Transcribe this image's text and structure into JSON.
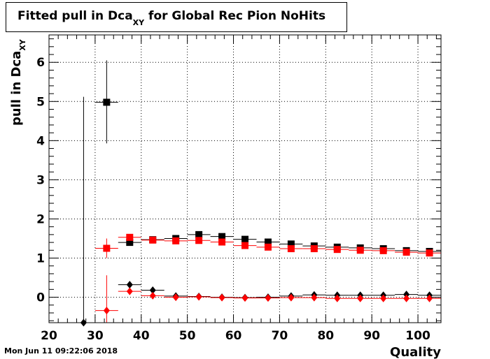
{
  "title": {
    "main": "Fitted pull in Dca",
    "sub": "XY",
    "rest": " for Global Rec Pion NoHits"
  },
  "timestamp": "Mon Jun 11 09:22:06 2018",
  "chart_data": {
    "type": "scatter",
    "title": "Fitted pull in Dca_XY for Global Rec Pion NoHits",
    "xlabel": "Quality",
    "ylabel_main": "pull in Dca",
    "ylabel_sub": "XY",
    "xlim": [
      20,
      105
    ],
    "ylim": [
      -0.65,
      6.7
    ],
    "xticks": [
      20,
      30,
      40,
      50,
      60,
      70,
      80,
      90,
      100
    ],
    "yticks": [
      0,
      1,
      2,
      3,
      4,
      5,
      6
    ],
    "grid": true,
    "series": [
      {
        "color": "#000000",
        "marker": "square",
        "points": [
          {
            "x": 32.5,
            "y": 4.98,
            "yerr": [
              1.05,
              1.07
            ]
          },
          {
            "x": 37.5,
            "y": 1.4,
            "yerr": [
              0.08,
              0.08
            ]
          },
          {
            "x": 42.5,
            "y": 1.47,
            "yerr": [
              0.04,
              0.04
            ]
          },
          {
            "x": 47.5,
            "y": 1.5,
            "yerr": [
              0.03,
              0.03
            ]
          },
          {
            "x": 52.5,
            "y": 1.6,
            "yerr": [
              0.03,
              0.03
            ]
          },
          {
            "x": 57.5,
            "y": 1.55,
            "yerr": [
              0.03,
              0.03
            ]
          },
          {
            "x": 62.5,
            "y": 1.48,
            "yerr": [
              0.03,
              0.03
            ]
          },
          {
            "x": 67.5,
            "y": 1.41,
            "yerr": [
              0.03,
              0.03
            ]
          },
          {
            "x": 72.5,
            "y": 1.36,
            "yerr": [
              0.03,
              0.03
            ]
          },
          {
            "x": 77.5,
            "y": 1.31,
            "yerr": [
              0.03,
              0.03
            ]
          },
          {
            "x": 82.5,
            "y": 1.28,
            "yerr": [
              0.03,
              0.03
            ]
          },
          {
            "x": 87.5,
            "y": 1.26,
            "yerr": [
              0.03,
              0.03
            ]
          },
          {
            "x": 92.5,
            "y": 1.24,
            "yerr": [
              0.03,
              0.03
            ]
          },
          {
            "x": 97.5,
            "y": 1.19,
            "yerr": [
              0.03,
              0.03
            ]
          },
          {
            "x": 102.5,
            "y": 1.17,
            "yerr": [
              0.03,
              0.03
            ]
          }
        ]
      },
      {
        "color": "#ff0000",
        "marker": "square",
        "points": [
          {
            "x": 32.5,
            "y": 1.25,
            "yerr": [
              0.25,
              0.25
            ]
          },
          {
            "x": 37.5,
            "y": 1.53,
            "yerr": [
              0.06,
              0.06
            ]
          },
          {
            "x": 42.5,
            "y": 1.46,
            "yerr": [
              0.04,
              0.04
            ]
          },
          {
            "x": 47.5,
            "y": 1.44,
            "yerr": [
              0.03,
              0.03
            ]
          },
          {
            "x": 52.5,
            "y": 1.45,
            "yerr": [
              0.03,
              0.03
            ]
          },
          {
            "x": 57.5,
            "y": 1.41,
            "yerr": [
              0.03,
              0.03
            ]
          },
          {
            "x": 62.5,
            "y": 1.32,
            "yerr": [
              0.03,
              0.03
            ]
          },
          {
            "x": 67.5,
            "y": 1.28,
            "yerr": [
              0.03,
              0.03
            ]
          },
          {
            "x": 72.5,
            "y": 1.24,
            "yerr": [
              0.03,
              0.03
            ]
          },
          {
            "x": 77.5,
            "y": 1.24,
            "yerr": [
              0.03,
              0.03
            ]
          },
          {
            "x": 82.5,
            "y": 1.22,
            "yerr": [
              0.03,
              0.03
            ]
          },
          {
            "x": 87.5,
            "y": 1.2,
            "yerr": [
              0.03,
              0.03
            ]
          },
          {
            "x": 92.5,
            "y": 1.19,
            "yerr": [
              0.03,
              0.03
            ]
          },
          {
            "x": 97.5,
            "y": 1.15,
            "yerr": [
              0.03,
              0.03
            ]
          },
          {
            "x": 102.5,
            "y": 1.13,
            "yerr": [
              0.03,
              0.03
            ]
          }
        ]
      },
      {
        "color": "#000000",
        "marker": "diamond",
        "points": [
          {
            "x": 27.5,
            "y": -0.65,
            "yerr": [
              0.0,
              5.77
            ]
          },
          {
            "x": 37.5,
            "y": 0.32,
            "yerr": [
              0.05,
              0.05
            ]
          },
          {
            "x": 42.5,
            "y": 0.18,
            "yerr": [
              0.03,
              0.03
            ]
          },
          {
            "x": 47.5,
            "y": 0.03,
            "yerr": [
              0.02,
              0.02
            ]
          },
          {
            "x": 52.5,
            "y": 0.02,
            "yerr": [
              0.02,
              0.02
            ]
          },
          {
            "x": 57.5,
            "y": 0.0,
            "yerr": [
              0.02,
              0.02
            ]
          },
          {
            "x": 62.5,
            "y": -0.01,
            "yerr": [
              0.02,
              0.02
            ]
          },
          {
            "x": 67.5,
            "y": 0.0,
            "yerr": [
              0.02,
              0.02
            ]
          },
          {
            "x": 72.5,
            "y": 0.03,
            "yerr": [
              0.02,
              0.02
            ]
          },
          {
            "x": 77.5,
            "y": 0.06,
            "yerr": [
              0.02,
              0.02
            ]
          },
          {
            "x": 82.5,
            "y": 0.05,
            "yerr": [
              0.02,
              0.02
            ]
          },
          {
            "x": 87.5,
            "y": 0.05,
            "yerr": [
              0.02,
              0.02
            ]
          },
          {
            "x": 92.5,
            "y": 0.05,
            "yerr": [
              0.02,
              0.02
            ]
          },
          {
            "x": 97.5,
            "y": 0.07,
            "yerr": [
              0.02,
              0.02
            ]
          },
          {
            "x": 102.5,
            "y": 0.05,
            "yerr": [
              0.02,
              0.02
            ]
          }
        ]
      },
      {
        "color": "#ff0000",
        "marker": "diamond",
        "points": [
          {
            "x": 32.5,
            "y": -0.34,
            "yerr": [
              0.3,
              0.9
            ]
          },
          {
            "x": 37.5,
            "y": 0.15,
            "yerr": [
              0.04,
              0.04
            ]
          },
          {
            "x": 42.5,
            "y": 0.04,
            "yerr": [
              0.03,
              0.03
            ]
          },
          {
            "x": 47.5,
            "y": 0.0,
            "yerr": [
              0.02,
              0.02
            ]
          },
          {
            "x": 52.5,
            "y": 0.01,
            "yerr": [
              0.02,
              0.02
            ]
          },
          {
            "x": 57.5,
            "y": -0.01,
            "yerr": [
              0.02,
              0.02
            ]
          },
          {
            "x": 62.5,
            "y": -0.02,
            "yerr": [
              0.02,
              0.02
            ]
          },
          {
            "x": 67.5,
            "y": -0.02,
            "yerr": [
              0.02,
              0.02
            ]
          },
          {
            "x": 72.5,
            "y": -0.01,
            "yerr": [
              0.02,
              0.02
            ]
          },
          {
            "x": 77.5,
            "y": -0.01,
            "yerr": [
              0.02,
              0.02
            ]
          },
          {
            "x": 82.5,
            "y": -0.03,
            "yerr": [
              0.02,
              0.02
            ]
          },
          {
            "x": 87.5,
            "y": -0.03,
            "yerr": [
              0.02,
              0.02
            ]
          },
          {
            "x": 92.5,
            "y": -0.03,
            "yerr": [
              0.02,
              0.02
            ]
          },
          {
            "x": 97.5,
            "y": -0.03,
            "yerr": [
              0.02,
              0.02
            ]
          },
          {
            "x": 102.5,
            "y": -0.03,
            "yerr": [
              0.02,
              0.02
            ]
          }
        ]
      }
    ]
  }
}
